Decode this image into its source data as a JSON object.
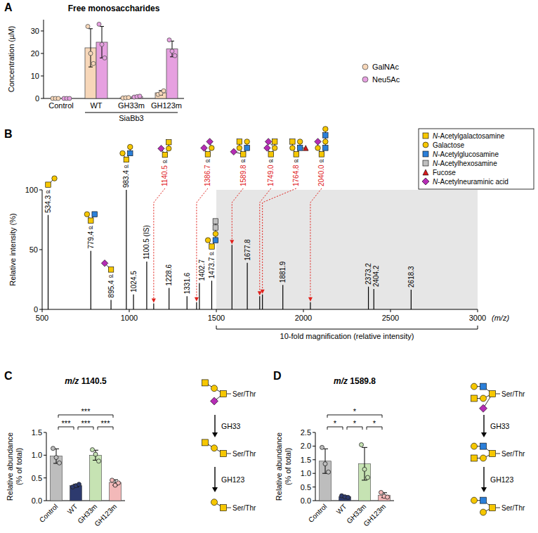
{
  "panels": [
    "A",
    "B",
    "C",
    "D"
  ],
  "chart_data": [
    {
      "type": "bar",
      "title": "Free monosaccharides",
      "y_label": "Concentration (µM)",
      "categories": [
        "Control",
        "WT",
        "GH33m",
        "GH123m"
      ],
      "group": {
        "label": "SiaBb3",
        "members": [
          1,
          2,
          3
        ]
      },
      "series": [
        {
          "name": "GalNAc",
          "color": "#f7d7b9",
          "values": [
            0,
            22.5,
            0.3,
            2.5
          ],
          "errors": [
            0,
            8.5,
            0.2,
            1.0
          ],
          "points": [
            [
              0,
              0,
              0
            ],
            [
              32,
              20,
              15.5
            ],
            [
              0.2,
              0.3,
              0.4
            ],
            [
              1.8,
              2.3,
              3.4
            ]
          ]
        },
        {
          "name": "Neu5Ac",
          "color": "#e6a0e0",
          "values": [
            0,
            25,
            0.8,
            22
          ],
          "errors": [
            0,
            7,
            0.4,
            3.5
          ],
          "points": [
            [
              0,
              0,
              0
            ],
            [
              33,
              24,
              18
            ],
            [
              0.6,
              0.8,
              1.0
            ],
            [
              26,
              21,
              19
            ]
          ]
        }
      ],
      "ylim": [
        0,
        35
      ],
      "yticks": [
        0,
        10,
        20,
        30
      ],
      "legend": "right"
    },
    {
      "type": "spectrum",
      "x_label": "(m/z)",
      "y_label": "Relative intensity (%)",
      "x": [
        534.3,
        779.4,
        895.4,
        983.4,
        1024.5,
        1100.5,
        1140.5,
        1228.6,
        1331.6,
        1386.7,
        1402.7,
        1473.7,
        1589.8,
        1677.8,
        1749.0,
        1764.8,
        1881.9,
        2040.0,
        2373.2,
        2404.2,
        2618.3
      ],
      "values": [
        79,
        49,
        8,
        100,
        12.5,
        40,
        5,
        18,
        11,
        6,
        22,
        24,
        54,
        39,
        11,
        12.5,
        20.5,
        6,
        19,
        17,
        16.5
      ],
      "peak_labels": [
        "534.3",
        "779.4",
        "895.4",
        "983.4",
        "1024.5",
        "1100.5 (IS)",
        "1140.5",
        "1228.6",
        "1331.6",
        "1386.7",
        "1402.7",
        "1473.7",
        "1589.8",
        "1677.8",
        "1749.0",
        "1764.8",
        "1881.9",
        "2040.0",
        "2373.2",
        "2404.2",
        "2618.3"
      ],
      "colors": [
        "#000000",
        "#000000",
        "#000000",
        "#000000",
        "#000000",
        "#000000",
        "#e0201b",
        "#000000",
        "#000000",
        "#e0201b",
        "#000000",
        "#000000",
        "#e0201b",
        "#000000",
        "#e0201b",
        "#e0201b",
        "#000000",
        "#e0201b",
        "#000000",
        "#000000",
        "#000000"
      ],
      "xlim": [
        500,
        3000
      ],
      "xticks": [
        500,
        1000,
        1500,
        2000,
        2500,
        3000
      ],
      "ylim": [
        0,
        100
      ],
      "yticks": [
        0,
        50,
        100
      ],
      "magnified_range": [
        1500,
        3000
      ],
      "magnified_label": "10-fold magnification (relative intensity)",
      "reducing_end_label": "ol"
    },
    {
      "type": "bar",
      "title": "m/z 1140.5",
      "y_label": "Relative abundance (% of total)",
      "categories": [
        "Control",
        "WT",
        "GH33m",
        "GH123m"
      ],
      "values": [
        0.98,
        0.33,
        1.0,
        0.4
      ],
      "errors": [
        0.16,
        0.03,
        0.11,
        0.06
      ],
      "points": [
        [
          1.15,
          0.95,
          0.83
        ],
        [
          0.3,
          0.33,
          0.36
        ],
        [
          1.12,
          1.02,
          0.87
        ],
        [
          0.45,
          0.34,
          0.39
        ]
      ],
      "colors": [
        "#bdbdbd",
        "#2d3a6e",
        "#c6e3b3",
        "#f3b9b9"
      ],
      "ylim": [
        0,
        1.5
      ],
      "yticks": [
        {
          "value": 0,
          "label": "0.0"
        },
        {
          "value": 0.5,
          "label": "0.5"
        },
        {
          "value": 1,
          "label": "1.0"
        },
        {
          "value": 1.5,
          "label": "1.5"
        }
      ],
      "significance": [
        {
          "pair": [
            0,
            1
          ],
          "label": "***"
        },
        {
          "pair": [
            0,
            3
          ],
          "label": "***"
        },
        {
          "pair": [
            1,
            2
          ],
          "label": "***"
        },
        {
          "pair": [
            2,
            3
          ],
          "label": "***"
        }
      ],
      "pathway": {
        "site": "Ser/Thr",
        "steps": [
          "GH33",
          "GH123"
        ]
      }
    },
    {
      "type": "bar",
      "title": "m/z 1589.8",
      "y_label": "Relative abundance (% of total)",
      "categories": [
        "Control",
        "WT",
        "GH33m",
        "GH123m"
      ],
      "values": [
        1.45,
        0.15,
        1.35,
        0.2
      ],
      "errors": [
        0.45,
        0.03,
        0.6,
        0.09
      ],
      "points": [
        [
          1.95,
          1.35,
          1.05
        ],
        [
          0.18,
          0.14,
          0.12
        ],
        [
          2.05,
          1.15,
          0.85
        ],
        [
          0.3,
          0.16,
          0.13
        ]
      ],
      "colors": [
        "#bdbdbd",
        "#2d3a6e",
        "#c6e3b3",
        "#f3b9b9"
      ],
      "ylim": [
        0,
        2.5
      ],
      "yticks": [
        {
          "value": 0,
          "label": "0.0"
        },
        {
          "value": 0.5,
          "label": "0.5"
        },
        {
          "value": 1,
          "label": "1.0"
        },
        {
          "value": 1.5,
          "label": "1.5"
        },
        {
          "value": 2,
          "label": "2.0"
        },
        {
          "value": 2.5,
          "label": "2.5"
        }
      ],
      "significance": [
        {
          "pair": [
            0,
            1
          ],
          "label": "*"
        },
        {
          "pair": [
            0,
            3
          ],
          "label": "*"
        },
        {
          "pair": [
            1,
            2
          ],
          "label": "*"
        },
        {
          "pair": [
            2,
            3
          ],
          "label": "*"
        }
      ],
      "pathway": {
        "site": "Ser/Thr",
        "steps": [
          "GH33",
          "GH123"
        ]
      }
    }
  ],
  "glycan_legend": [
    {
      "name": "N-Acetylgalactosamine",
      "shape": "square",
      "color": "#f6c700"
    },
    {
      "name": "Galactose",
      "shape": "circle",
      "color": "#f6c700"
    },
    {
      "name": "N-Acetylglucosamine",
      "shape": "square",
      "color": "#2b7fd9"
    },
    {
      "name": "N-Acetylhexosamine",
      "shape": "square",
      "color": "#bfbfbf"
    },
    {
      "name": "Fucose",
      "shape": "triangle",
      "color": "#d7191c"
    },
    {
      "name": "N-Acetylneuraminic acid",
      "shape": "diamond",
      "color": "#b52cb5"
    }
  ]
}
